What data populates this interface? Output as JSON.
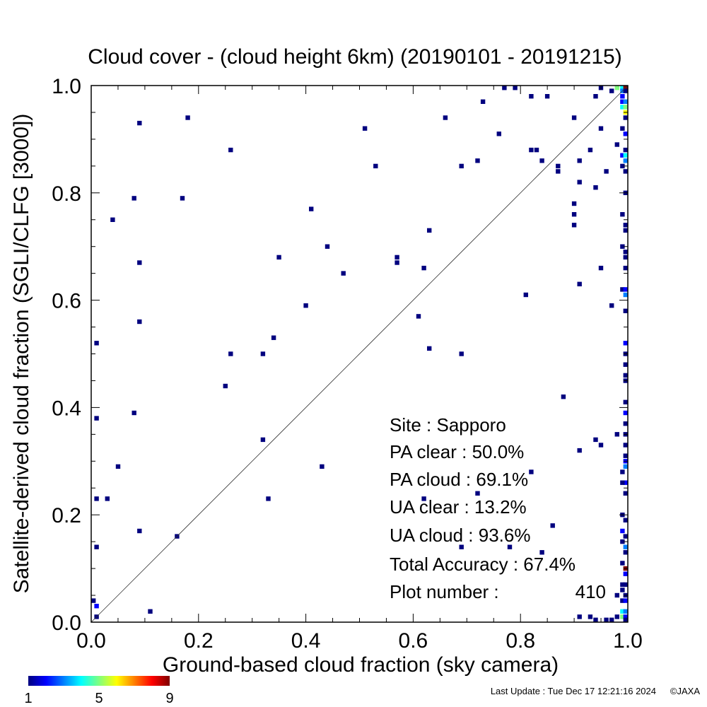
{
  "chart_data": {
    "type": "heatmap",
    "title": "Cloud cover - (cloud height 6km)  (20190101 - 20191215)",
    "xlabel": "Ground-based cloud fraction (sky camera)",
    "ylabel": "Satellite-derived cloud fraction (SGLI/CLFG [3000])",
    "xlim": [
      0.0,
      1.0
    ],
    "ylim": [
      0.0,
      1.0
    ],
    "xticks": [
      "0.0",
      "0.2",
      "0.4",
      "0.6",
      "0.8",
      "1.0"
    ],
    "yticks": [
      "0.0",
      "0.2",
      "0.4",
      "0.6",
      "0.8",
      "1.0"
    ],
    "diagonal_line": true,
    "bin_size": 0.01,
    "points": [
      [
        0.09,
        0.93,
        1
      ],
      [
        0.18,
        0.94,
        1
      ],
      [
        0.26,
        0.88,
        1
      ],
      [
        0.08,
        0.79,
        1
      ],
      [
        0.17,
        0.79,
        1
      ],
      [
        0.04,
        0.75,
        1
      ],
      [
        0.09,
        0.67,
        1
      ],
      [
        0.09,
        0.56,
        1
      ],
      [
        0.01,
        0.52,
        1
      ],
      [
        0.08,
        0.39,
        1
      ],
      [
        0.01,
        0.38,
        1
      ],
      [
        0.05,
        0.29,
        1
      ],
      [
        0.01,
        0.23,
        1
      ],
      [
        0.03,
        0.23,
        1
      ],
      [
        0.09,
        0.17,
        1
      ],
      [
        0.01,
        0.14,
        1
      ],
      [
        0.16,
        0.16,
        1
      ],
      [
        0.0,
        0.04,
        1
      ],
      [
        0.01,
        0.03,
        2
      ],
      [
        0.01,
        0.01,
        1
      ],
      [
        0.11,
        0.02,
        1
      ],
      [
        0.41,
        0.77,
        1
      ],
      [
        0.35,
        0.68,
        1
      ],
      [
        0.44,
        0.7,
        1
      ],
      [
        0.47,
        0.65,
        1
      ],
      [
        0.4,
        0.59,
        1
      ],
      [
        0.34,
        0.53,
        1
      ],
      [
        0.26,
        0.5,
        1
      ],
      [
        0.32,
        0.5,
        1
      ],
      [
        0.25,
        0.44,
        1
      ],
      [
        0.32,
        0.34,
        1
      ],
      [
        0.43,
        0.29,
        1
      ],
      [
        0.33,
        0.23,
        1
      ],
      [
        0.51,
        0.92,
        1
      ],
      [
        0.53,
        0.85,
        1
      ],
      [
        0.57,
        0.68,
        1
      ],
      [
        0.57,
        0.67,
        1
      ],
      [
        0.62,
        0.66,
        1
      ],
      [
        0.63,
        0.73,
        1
      ],
      [
        0.61,
        0.57,
        1
      ],
      [
        0.63,
        0.51,
        1
      ],
      [
        0.69,
        0.5,
        1
      ],
      [
        0.62,
        0.23,
        1
      ],
      [
        0.69,
        0.85,
        1
      ],
      [
        0.66,
        0.94,
        1
      ],
      [
        0.72,
        0.86,
        1
      ],
      [
        0.73,
        0.97,
        1
      ],
      [
        0.76,
        0.91,
        1
      ],
      [
        0.77,
        1.0,
        1
      ],
      [
        0.79,
        1.0,
        1
      ],
      [
        0.82,
        0.98,
        1
      ],
      [
        0.85,
        0.98,
        1
      ],
      [
        0.82,
        0.88,
        1
      ],
      [
        0.83,
        0.88,
        1
      ],
      [
        0.84,
        0.86,
        1
      ],
      [
        0.87,
        0.85,
        1
      ],
      [
        0.87,
        0.84,
        1
      ],
      [
        0.81,
        0.61,
        1
      ],
      [
        0.88,
        0.42,
        1
      ],
      [
        0.82,
        0.28,
        1
      ],
      [
        0.72,
        0.24,
        1
      ],
      [
        0.86,
        0.18,
        1
      ],
      [
        0.84,
        0.13,
        1
      ],
      [
        0.69,
        0.14,
        1
      ],
      [
        0.78,
        0.14,
        1
      ],
      [
        0.9,
        0.94,
        1
      ],
      [
        0.91,
        0.86,
        1
      ],
      [
        0.93,
        0.88,
        1
      ],
      [
        0.91,
        0.82,
        1
      ],
      [
        0.9,
        0.78,
        1
      ],
      [
        0.9,
        0.76,
        1
      ],
      [
        0.9,
        0.74,
        1
      ],
      [
        0.94,
        0.81,
        1
      ],
      [
        0.95,
        0.66,
        1
      ],
      [
        0.91,
        0.63,
        1
      ],
      [
        0.97,
        0.59,
        1
      ],
      [
        0.91,
        0.32,
        1
      ],
      [
        0.94,
        0.34,
        1
      ],
      [
        0.95,
        0.33,
        1
      ],
      [
        0.91,
        0.01,
        1
      ],
      [
        0.93,
        0.01,
        1
      ],
      [
        0.94,
        0.0,
        1
      ],
      [
        0.96,
        0.0,
        1
      ],
      [
        0.94,
        0.98,
        1
      ],
      [
        0.95,
        1.0,
        1
      ],
      [
        0.97,
        0.99,
        1
      ],
      [
        0.95,
        0.92,
        1
      ],
      [
        0.96,
        0.84,
        1
      ],
      [
        0.98,
        0.89,
        1
      ],
      [
        0.98,
        0.35,
        1
      ],
      [
        0.99,
        1.0,
        4
      ],
      [
        1.0,
        1.0,
        9
      ],
      [
        0.98,
        1.0,
        5
      ],
      [
        0.99,
        0.99,
        3
      ],
      [
        0.99,
        0.98,
        2
      ],
      [
        1.0,
        0.99,
        1
      ],
      [
        0.99,
        0.97,
        2
      ],
      [
        1.0,
        0.97,
        3
      ],
      [
        0.99,
        0.96,
        4
      ],
      [
        1.0,
        0.96,
        5
      ],
      [
        1.0,
        0.95,
        6
      ],
      [
        1.0,
        0.94,
        1
      ],
      [
        0.99,
        0.92,
        1
      ],
      [
        1.0,
        0.91,
        2
      ],
      [
        1.0,
        0.88,
        1
      ],
      [
        0.99,
        0.87,
        2
      ],
      [
        1.0,
        0.87,
        4
      ],
      [
        1.0,
        0.86,
        3
      ],
      [
        0.99,
        0.85,
        1
      ],
      [
        1.0,
        0.84,
        1
      ],
      [
        1.0,
        0.8,
        1
      ],
      [
        0.99,
        0.76,
        1
      ],
      [
        1.0,
        0.74,
        1
      ],
      [
        1.0,
        0.73,
        1
      ],
      [
        0.99,
        0.7,
        1
      ],
      [
        1.0,
        0.69,
        1
      ],
      [
        1.0,
        0.68,
        1
      ],
      [
        1.0,
        0.66,
        1
      ],
      [
        0.99,
        0.62,
        1
      ],
      [
        1.0,
        0.62,
        2
      ],
      [
        1.0,
        0.61,
        3
      ],
      [
        1.0,
        0.58,
        1
      ],
      [
        1.0,
        0.52,
        2
      ],
      [
        1.0,
        0.5,
        1
      ],
      [
        1.0,
        0.48,
        1
      ],
      [
        1.0,
        0.46,
        1
      ],
      [
        1.0,
        0.45,
        1
      ],
      [
        1.0,
        0.41,
        1
      ],
      [
        1.0,
        0.39,
        2
      ],
      [
        1.0,
        0.37,
        1
      ],
      [
        1.0,
        0.35,
        1
      ],
      [
        1.0,
        0.33,
        1
      ],
      [
        1.0,
        0.31,
        1
      ],
      [
        1.0,
        0.3,
        2
      ],
      [
        1.0,
        0.29,
        3
      ],
      [
        0.99,
        0.28,
        1
      ],
      [
        1.0,
        0.26,
        2
      ],
      [
        0.99,
        0.26,
        1
      ],
      [
        1.0,
        0.24,
        1
      ],
      [
        0.99,
        0.2,
        1
      ],
      [
        1.0,
        0.19,
        1
      ],
      [
        0.99,
        0.17,
        2
      ],
      [
        1.0,
        0.16,
        1
      ],
      [
        0.99,
        0.15,
        1
      ],
      [
        1.0,
        0.14,
        3
      ],
      [
        1.0,
        0.13,
        1
      ],
      [
        0.99,
        0.11,
        1
      ],
      [
        1.0,
        0.1,
        9
      ],
      [
        1.0,
        0.09,
        2
      ],
      [
        0.99,
        0.07,
        1
      ],
      [
        1.0,
        0.07,
        1
      ],
      [
        0.99,
        0.06,
        1
      ],
      [
        1.0,
        0.05,
        1
      ],
      [
        0.98,
        0.05,
        1
      ],
      [
        0.99,
        0.04,
        1
      ],
      [
        1.0,
        0.04,
        2
      ],
      [
        0.99,
        0.02,
        4
      ],
      [
        1.0,
        0.02,
        3
      ],
      [
        0.99,
        0.01,
        5
      ],
      [
        1.0,
        0.01,
        2
      ],
      [
        0.98,
        0.01,
        1
      ],
      [
        0.97,
        0.0,
        1
      ],
      [
        1.0,
        0.0,
        1
      ]
    ],
    "colorbar": {
      "min_label": "1",
      "mid_label": "5",
      "max_label": "9",
      "colors": [
        "#00007f",
        "#0000ff",
        "#007fff",
        "#00ffff",
        "#7fff7f",
        "#ffff00",
        "#ff7f00",
        "#ff0000",
        "#7f0000"
      ]
    },
    "stats": {
      "site": "Site : Sapporo",
      "pa_clear": "PA clear :  50.0%",
      "pa_cloud": "PA cloud :  69.1%",
      "ua_clear": "UA clear :  13.2%",
      "ua_cloud": "UA cloud :  93.6%",
      "total_accuracy": "Total Accuracy :  67.4%",
      "plot_number_label": "Plot number :",
      "plot_number_value": "410"
    }
  },
  "footer": {
    "last_update": "Last Update : Tue Dec 17 12:21:16 2024",
    "copyright": "©JAXA"
  }
}
